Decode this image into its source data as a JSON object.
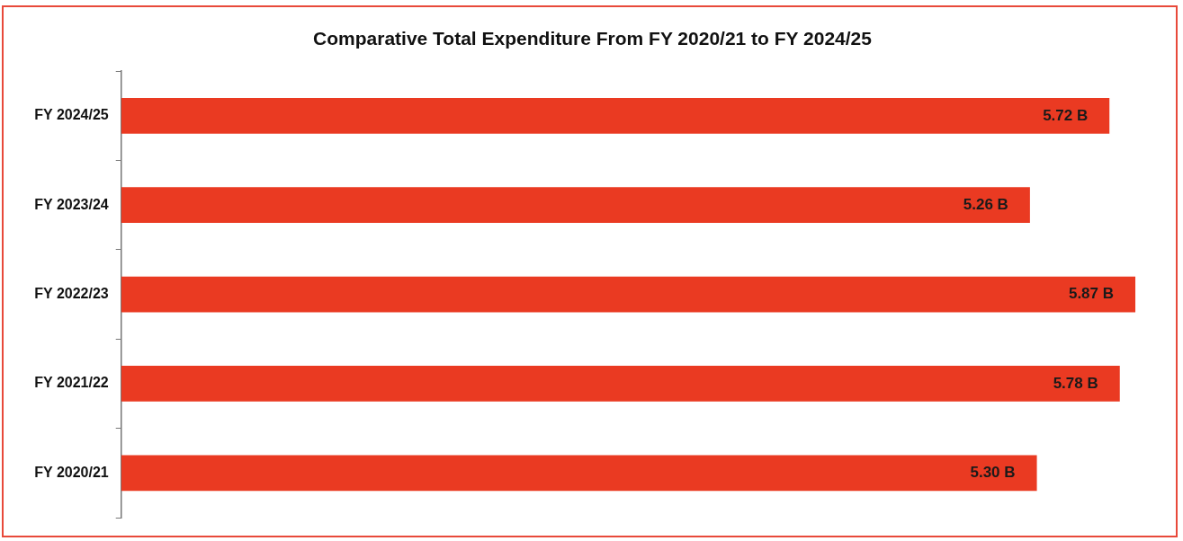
{
  "chart_data": {
    "type": "bar",
    "orientation": "horizontal",
    "title": "Comparative Total Expenditure From FY 2020/21 to FY 2024/25",
    "categories": [
      "FY 2024/25",
      "FY 2023/24",
      "FY 2022/23",
      "FY 2021/22",
      "FY 2020/21"
    ],
    "values": [
      5.72,
      5.26,
      5.87,
      5.78,
      5.3
    ],
    "value_labels": [
      "5.72 B",
      "5.26 B",
      "5.87 B",
      "5.78 B",
      "5.30 B"
    ],
    "color": "#ea3a22",
    "tick_labels": "y"
  }
}
